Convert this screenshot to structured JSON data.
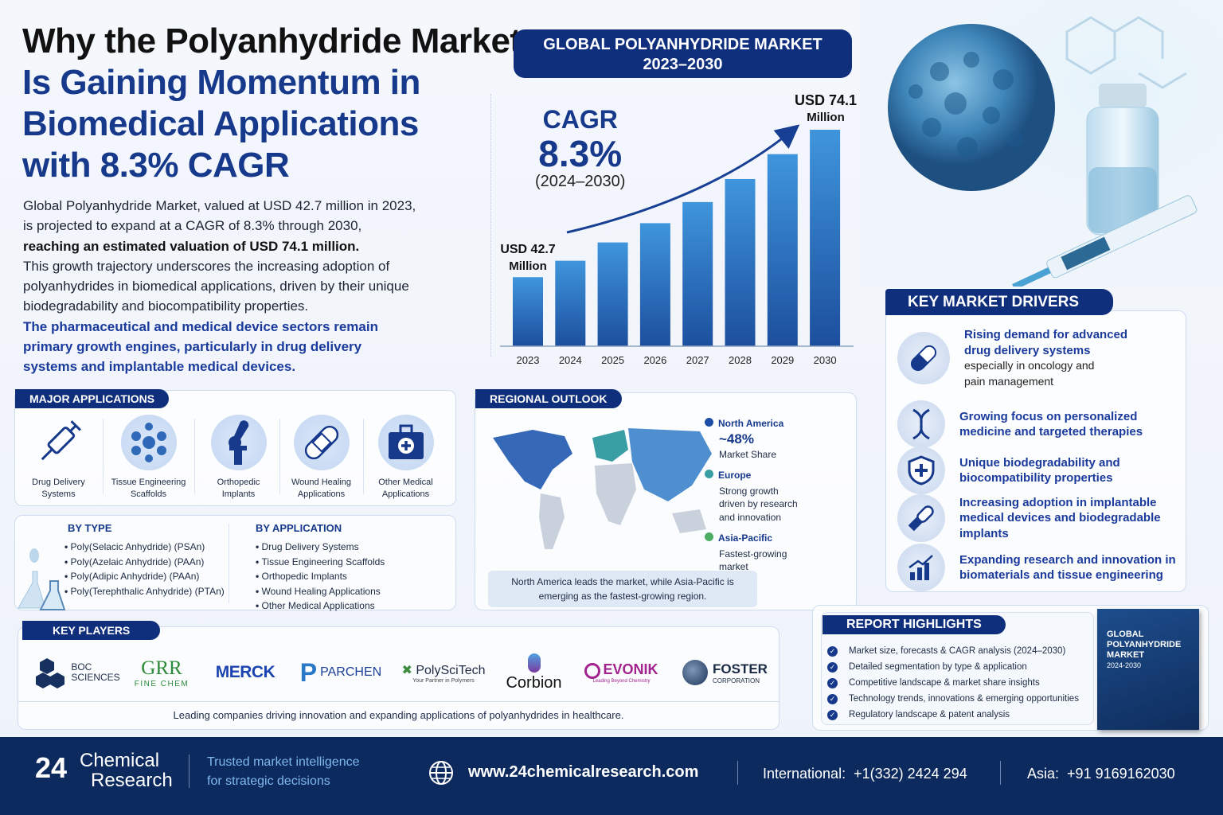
{
  "title": {
    "line1": "Why the Polyanhydride Market",
    "line2": "Is Gaining Momentum in",
    "line3": "Biomedical Applications",
    "line4": "with 8.3% CAGR"
  },
  "intro": {
    "p1": "Global Polyanhydride Market, valued at USD 42.7 million in 2023,",
    "p2": "is projected to expand at a CAGR of 8.3% through 2030,",
    "p3": "reaching an estimated valuation of USD 74.1 million.",
    "p4": "This growth trajectory underscores the increasing adoption of polyanhydrides in biomedical applications, driven by their unique biodegradability and biocompatibility properties.",
    "p5": "The pharmaceutical and medical device sectors remain primary growth engines, particularly in drug delivery systems and implantable medical devices."
  },
  "chart_header": {
    "line1": "GLOBAL POLYANHYDRIDE MARKET",
    "line2": "2023–2030"
  },
  "cagr": {
    "label": "CAGR",
    "value": "8.3%",
    "period": "(2024–2030)"
  },
  "chart_data": {
    "type": "bar",
    "categories": [
      "2023",
      "2024",
      "2025",
      "2026",
      "2027",
      "2028",
      "2029",
      "2030"
    ],
    "values": [
      42.7,
      46.2,
      50.1,
      54.2,
      58.7,
      63.6,
      68.9,
      74.1
    ],
    "start_label": "USD 42.7",
    "start_unit": "Million",
    "end_label": "USD 74.1",
    "end_unit": "Million",
    "grid": false,
    "bar_color": "#2d79c8"
  },
  "applications": {
    "header": "MAJOR APPLICATIONS",
    "items": [
      {
        "l1": "Drug Delivery",
        "l2": "Systems",
        "icon": "syringe-icon"
      },
      {
        "l1": "Tissue Engineering",
        "l2": "Scaffolds",
        "icon": "cell-scaffold-icon"
      },
      {
        "l1": "Orthopedic",
        "l2": "Implants",
        "icon": "bone-joint-icon"
      },
      {
        "l1": "Wound Healing",
        "l2": "Applications",
        "icon": "bandage-icon"
      },
      {
        "l1": "Other Medical",
        "l2": "Applications",
        "icon": "medical-kit-icon"
      }
    ]
  },
  "segments": {
    "type_header": "BY TYPE",
    "types": [
      "Poly(Selacic Anhydride) (PSAn)",
      "Poly(Azelaic Anhydride) (PAAn)",
      "Poly(Adipic Anhydride) (PAAn)",
      "Poly(Terephthalic Anhydride) (PTAn)"
    ],
    "app_header": "BY APPLICATION",
    "apps": [
      "Drug Delivery Systems",
      "Tissue Engineering Scaffolds",
      "Orthopedic Implants",
      "Wound Healing Applications",
      "Other Medical Applications"
    ]
  },
  "region": {
    "header": "REGIONAL OUTLOOK",
    "na_name": "North America",
    "na_share": "~48%",
    "na_label": "Market Share",
    "eu_name": "Europe",
    "eu_desc": "Strong growth driven by research and innovation",
    "ap_name": "Asia-Pacific",
    "ap_desc": "Fastest-growing market",
    "note": "North America leads the market, while Asia-Pacific is emerging as the fastest-growing region.",
    "colors": {
      "na": "#1d4fa6",
      "eu": "#3a9ea5",
      "ap": "#4cae62"
    }
  },
  "drivers": {
    "header": "KEY MARKET DRIVERS",
    "items": [
      {
        "t": "Rising demand for advanced drug delivery systems",
        "s": "especially in oncology and pain management",
        "icon": "capsule-icon"
      },
      {
        "t": "Growing focus on personalized medicine and targeted therapies",
        "s": "",
        "icon": "dna-icon"
      },
      {
        "t": "Unique biodegradability and biocompatibility properties",
        "s": "",
        "icon": "shield-plus-icon"
      },
      {
        "t": "Increasing adoption in implantable medical devices and biodegradable implants",
        "s": "",
        "icon": "implant-icon"
      },
      {
        "t": "Expanding research and innovation in biomaterials and tissue engineering",
        "s": "",
        "icon": "growth-chart-icon"
      }
    ]
  },
  "players": {
    "header": "KEY PLAYERS",
    "logos": [
      {
        "name": "BOC",
        "sub": "SCIENCES"
      },
      {
        "name": "GRR",
        "sub": "FINE CHEM"
      },
      {
        "name": "MERCK",
        "sub": ""
      },
      {
        "name": "PARCHEN",
        "sub": ""
      },
      {
        "name": "PolySciTech",
        "sub": "Your Partner in Polymers"
      },
      {
        "name": "Corbion",
        "sub": ""
      },
      {
        "name": "EVONIK",
        "sub": "Leading Beyond Chemistry"
      },
      {
        "name": "FOSTER",
        "sub": "CORPORATION"
      }
    ],
    "caption": "Leading companies driving innovation and expanding applications of polyanhydrides in healthcare."
  },
  "highlights": {
    "header": "REPORT HIGHLIGHTS",
    "items": [
      "Market size, forecasts & CAGR analysis (2024–2030)",
      "Detailed segmentation by type & application",
      "Competitive landscape & market share insights",
      "Technology trends, innovations & emerging opportunities",
      "Regulatory landscape & patent analysis"
    ],
    "book_l1": "GLOBAL",
    "book_l2": "POLYANHYDRIDE",
    "book_l3": "MARKET",
    "book_years": "2024-2030"
  },
  "footer": {
    "brand_num": "24",
    "brand_l1": "Chemical",
    "brand_l2": "Research",
    "tag_l1": "Trusted market intelligence",
    "tag_l2": "for strategic decisions",
    "website": "www.24chemicalresearch.com",
    "intl_label": "International:",
    "intl_phone": "+1(332) 2424 294",
    "asia_label": "Asia:",
    "asia_phone": "+91 9169162030"
  }
}
